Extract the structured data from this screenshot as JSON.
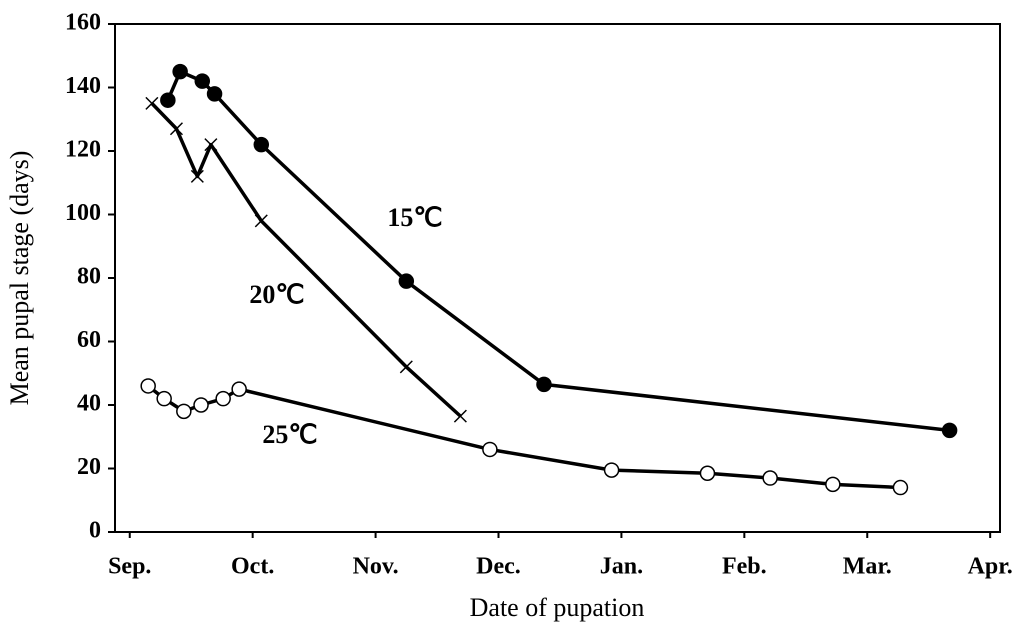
{
  "chart_data": {
    "type": "line",
    "x_label": "Date of pupation",
    "y_label": "Mean pupal stage (days)",
    "xlim": [
      -0.12,
      7.08
    ],
    "xticks": [
      {
        "value": 0,
        "label": "Sep."
      },
      {
        "value": 1,
        "label": "Oct."
      },
      {
        "value": 2,
        "label": "Nov."
      },
      {
        "value": 3,
        "label": "Dec."
      },
      {
        "value": 4,
        "label": "Jan."
      },
      {
        "value": 5,
        "label": "Feb."
      },
      {
        "value": 6,
        "label": "Mar."
      },
      {
        "value": 7,
        "label": "Apr."
      }
    ],
    "ylim": [
      0,
      160
    ],
    "yticks": [
      0,
      20,
      40,
      60,
      80,
      100,
      120,
      140,
      160
    ],
    "series": [
      {
        "name": "15℃",
        "color": "#000000",
        "marker": "filled-circle",
        "x": [
          0.31,
          0.41,
          0.59,
          0.69,
          1.07,
          2.25,
          3.37,
          6.67
        ],
        "values": [
          136,
          145,
          142,
          138,
          122,
          79,
          46.5,
          32
        ]
      },
      {
        "name": "20℃",
        "color": "#000000",
        "marker": "cross",
        "x": [
          0.18,
          0.38,
          0.55,
          0.66,
          1.07,
          2.25,
          2.69
        ],
        "values": [
          135,
          127,
          112,
          122,
          98,
          52,
          36.5
        ]
      },
      {
        "name": "25℃",
        "color": "#000000",
        "marker": "open-circle",
        "x": [
          0.15,
          0.28,
          0.44,
          0.58,
          0.76,
          0.89,
          2.93,
          3.92,
          4.7,
          5.21,
          5.72,
          6.27
        ],
        "values": [
          46,
          42,
          38,
          40,
          42,
          45,
          26,
          19.5,
          18.5,
          17,
          15,
          14
        ]
      }
    ]
  }
}
